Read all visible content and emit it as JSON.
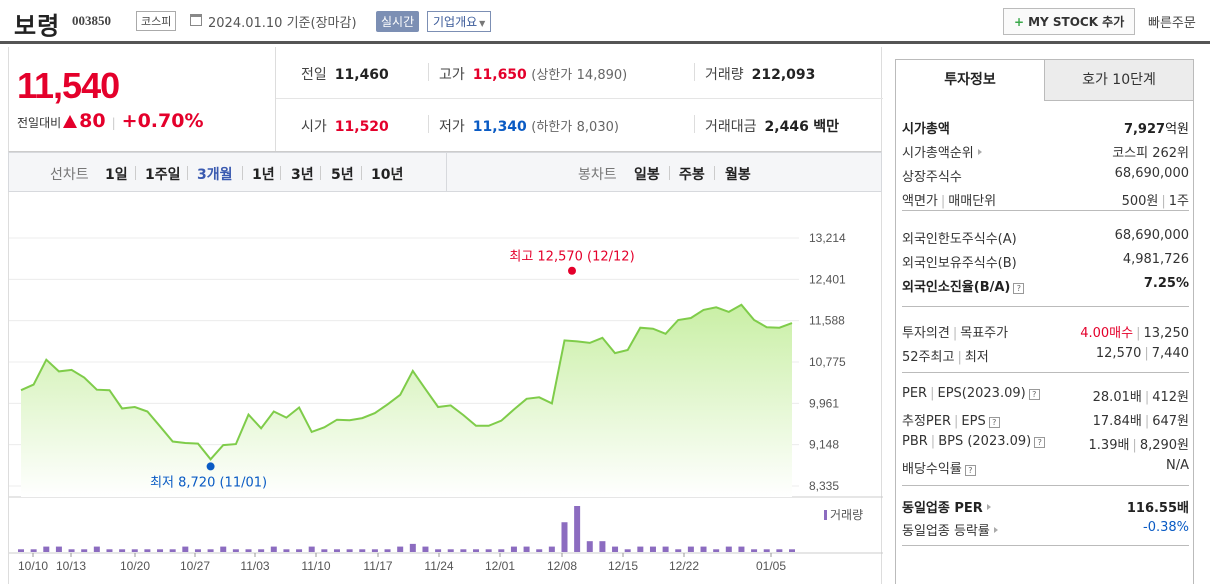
{
  "header": {
    "name": "보령",
    "code": "003850",
    "market": "코스피",
    "date": "2024.01.10",
    "date_note": "기준(장마감)",
    "realtime": "실시간",
    "corp_info": "기업개요",
    "mystock": "MY STOCK 추가",
    "quick_order": "빠른주문"
  },
  "price": {
    "current": "11,540",
    "change_label": "전일대비",
    "change": "80",
    "change_pct": "+0.70%"
  },
  "stats": {
    "prev_label": "전일",
    "prev": "11,460",
    "high_label": "고가",
    "high": "11,650",
    "upper_label": "(상한가",
    "upper": "14,890)",
    "vol_label": "거래량",
    "vol": "212,093",
    "open_label": "시가",
    "open": "11,520",
    "low_label": "저가",
    "low": "11,340",
    "lower_label": "(하한가",
    "lower": "8,030)",
    "amt_label": "거래대금",
    "amt": "2,446",
    "amt_unit": "백만"
  },
  "toolbar": {
    "line_label": "선차트",
    "line_items": [
      "1일",
      "1주일",
      "3개월",
      "1년",
      "3년",
      "5년",
      "10년"
    ],
    "active": "3개월",
    "candle_label": "봉차트",
    "candle_items": [
      "일봉",
      "주봉",
      "월봉"
    ]
  },
  "chart_data": {
    "type": "area",
    "y_ticks": [
      "13,214",
      "12,401",
      "11,588",
      "10,775",
      "9,961",
      "9,148",
      "8,335"
    ],
    "ylim": [
      8335,
      13214
    ],
    "x_ticks": [
      "10/10",
      "10/13",
      "10/20",
      "10/27",
      "11/03",
      "11/10",
      "11/17",
      "11/24",
      "12/01",
      "12/08",
      "12/15",
      "12/22",
      "01/05"
    ],
    "high_annotation": "최고 12,570 (12/12)",
    "low_annotation": "최저 8,720 (11/01)",
    "volume_label": "거래량",
    "color_line": "#7fcc4a",
    "color_fill": "#c9efa5",
    "color_volume": "#8c6cc0",
    "values": [
      10220,
      10330,
      10820,
      10590,
      10620,
      10470,
      10230,
      10220,
      9860,
      9890,
      9800,
      9510,
      9210,
      9180,
      9170,
      8860,
      9140,
      9160,
      9740,
      9470,
      9800,
      9680,
      9880,
      9400,
      9490,
      9640,
      9630,
      9670,
      9770,
      9940,
      10130,
      10600,
      10240,
      9890,
      9920,
      9730,
      9520,
      9520,
      9620,
      9840,
      10050,
      10080,
      9960,
      11200,
      11180,
      11150,
      11250,
      10950,
      11010,
      11450,
      11430,
      11330,
      11600,
      11640,
      11800,
      11850,
      11760,
      11900,
      11600,
      11460,
      11450,
      11540
    ],
    "volume": [
      1,
      1,
      2,
      2,
      1,
      1,
      2,
      1,
      1,
      1,
      1,
      1,
      1,
      2,
      1,
      1,
      2,
      1,
      1,
      1,
      2,
      1,
      1,
      2,
      1,
      1,
      1,
      1,
      1,
      1,
      2,
      3,
      2,
      1,
      1,
      1,
      1,
      1,
      1,
      2,
      2,
      1,
      2,
      11,
      17,
      4,
      4,
      2,
      1,
      2,
      2,
      2,
      1,
      2,
      2,
      1,
      2,
      2,
      1,
      1,
      1,
      1
    ]
  },
  "tabs": {
    "t1": "투자정보",
    "t2": "호가 10단계"
  },
  "info": {
    "mcap_k": "시가총액",
    "mcap_v": "7,927",
    "mcap_u": "억원",
    "rank_k": "시가총액순위",
    "rank_v": "코스피 262위",
    "shares_k": "상장주식수",
    "shares_v": "68,690,000",
    "face_k": "액면가",
    "face_k2": "매매단위",
    "face_v": "500원",
    "face_v2": "1주",
    "fl_k": "외국인한도주식수(A)",
    "fl_v": "68,690,000",
    "fh_k": "외국인보유주식수(B)",
    "fh_v": "4,981,726",
    "fr_k": "외국인소진율(B/A)",
    "fr_v": "7.25%",
    "op_k": "투자의견",
    "op_k2": "목표주가",
    "op_v": "4.00매수",
    "op_v2": "13,250",
    "w52_k": "52주최고",
    "w52_k2": "최저",
    "w52_v": "12,570",
    "w52_v2": "7,440",
    "per_k": "PER",
    "per_k2": "EPS(2023.09)",
    "per_v": "28.01배",
    "per_v2": "412원",
    "eper_k": "추정PER",
    "eper_k2": "EPS",
    "eper_v": "17.84배",
    "eper_v2": "647원",
    "pbr_k": "PBR",
    "pbr_k2": "BPS (2023.09)",
    "pbr_v": "1.39배",
    "pbr_v2": "8,290원",
    "div_k": "배당수익률",
    "div_v": "N/A",
    "ind_per_k": "동일업종 PER",
    "ind_per_v": "116.55배",
    "ind_rate_k": "동일업종 등락률",
    "ind_rate_v": "-0.38%"
  }
}
